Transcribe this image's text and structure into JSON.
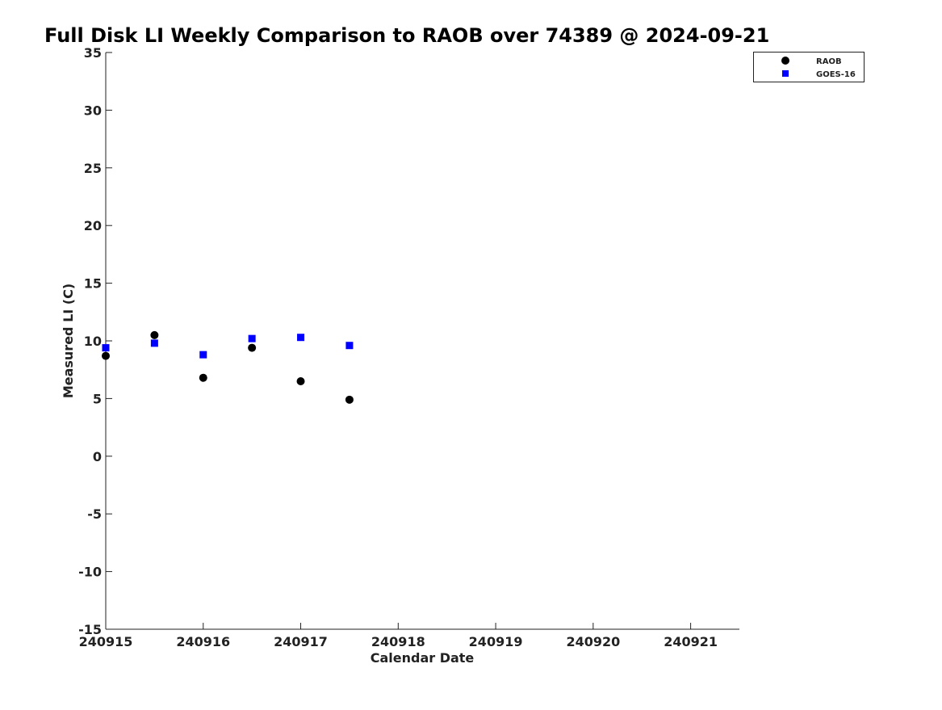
{
  "chart_data": {
    "type": "scatter",
    "title": "Full Disk LI Weekly Comparison to RAOB over 74389 @ 2024-09-21",
    "xlabel": "Calendar Date",
    "ylabel": "Measured LI (C)",
    "xlim": [
      240915,
      240921.5
    ],
    "ylim": [
      -15,
      35
    ],
    "xticks": [
      240915,
      240916,
      240917,
      240918,
      240919,
      240920,
      240921
    ],
    "xtick_labels": [
      "240915",
      "240916",
      "240917",
      "240918",
      "240919",
      "240920",
      "240921"
    ],
    "yticks": [
      35,
      30,
      25,
      20,
      15,
      10,
      5,
      0,
      -5,
      -10,
      -15
    ],
    "ytick_labels": [
      "35",
      "30",
      "25",
      "20",
      "15",
      "10",
      "5",
      "0",
      "-5",
      "-10",
      "-15"
    ],
    "grid": false,
    "legend_position": "top-right",
    "series": [
      {
        "name": "RAOB",
        "marker": "circle",
        "color": "#000000",
        "x": [
          240915,
          240915.5,
          240916,
          240916.5,
          240917,
          240917.5
        ],
        "y": [
          8.7,
          10.5,
          6.8,
          9.4,
          6.5,
          4.9
        ]
      },
      {
        "name": "GOES-16",
        "marker": "square",
        "color": "#0000ff",
        "x": [
          240915,
          240915.5,
          240916,
          240916.5,
          240917,
          240917.5
        ],
        "y": [
          9.4,
          9.8,
          8.8,
          10.2,
          10.3,
          9.6
        ]
      }
    ]
  }
}
